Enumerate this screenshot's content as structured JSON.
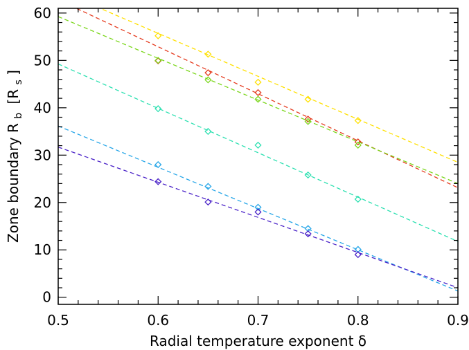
{
  "chart_data": {
    "type": "scatter",
    "xlabel": "Radial temperature exponent δ",
    "ylabel": {
      "text": "Zone boundary R",
      "sub": "b",
      "bracket_open": "[R",
      "bracket_sub": "s",
      "bracket_close": "]"
    },
    "xlim": [
      0.5,
      0.9
    ],
    "ylim": [
      -1.5,
      61
    ],
    "x_ticks": [
      0.5,
      0.6,
      0.7,
      0.8,
      0.9
    ],
    "x_tick_labels": [
      "0.5",
      "0.6",
      "0.7",
      "0.8",
      "0.9"
    ],
    "y_ticks": [
      0,
      10,
      20,
      30,
      40,
      50,
      60
    ],
    "y_tick_labels": [
      "0",
      "10",
      "20",
      "30",
      "40",
      "50",
      "60"
    ],
    "x_minor_step": 0.02,
    "y_minor_step": 2,
    "grid": false,
    "marker": "diamond",
    "line_style": "dashed",
    "series": [
      {
        "color": "#ffe000",
        "points": [
          [
            0.6,
            55.2
          ],
          [
            0.65,
            51.3
          ],
          [
            0.7,
            45.4
          ],
          [
            0.75,
            41.8
          ],
          [
            0.8,
            37.3
          ]
        ],
        "fit": {
          "slope": -90.8,
          "intercept": 110.2
        }
      },
      {
        "color": "#e53a1e",
        "points": [
          [
            0.6,
            49.9
          ],
          [
            0.65,
            47.4
          ],
          [
            0.7,
            43.2
          ],
          [
            0.75,
            37.6
          ],
          [
            0.8,
            32.8
          ]
        ],
        "fit": {
          "slope": -99.2,
          "intercept": 112.4
        }
      },
      {
        "color": "#7ad61a",
        "points": [
          [
            0.6,
            50.0
          ],
          [
            0.65,
            45.9
          ],
          [
            0.7,
            41.8
          ],
          [
            0.75,
            37.1
          ],
          [
            0.8,
            32.1
          ]
        ],
        "fit": {
          "slope": -88.1,
          "intercept": 103.3
        }
      },
      {
        "color": "#2ae0b0",
        "points": [
          [
            0.6,
            39.8
          ],
          [
            0.65,
            35.0
          ],
          [
            0.7,
            32.1
          ],
          [
            0.75,
            25.8
          ],
          [
            0.8,
            20.7
          ]
        ],
        "fit": {
          "slope": -93.7,
          "intercept": 96.1
        }
      },
      {
        "color": "#26a6e8",
        "points": [
          [
            0.6,
            28.0
          ],
          [
            0.65,
            23.4
          ],
          [
            0.7,
            19.0
          ],
          [
            0.75,
            14.5
          ],
          [
            0.8,
            10.1
          ]
        ],
        "fit": {
          "slope": -87.1,
          "intercept": 79.7
        }
      },
      {
        "color": "#4a22c8",
        "points": [
          [
            0.6,
            24.4
          ],
          [
            0.65,
            20.1
          ],
          [
            0.7,
            18.0
          ],
          [
            0.75,
            13.4
          ],
          [
            0.8,
            9.0
          ]
        ],
        "fit": {
          "slope": -74.2,
          "intercept": 68.8
        }
      }
    ]
  }
}
